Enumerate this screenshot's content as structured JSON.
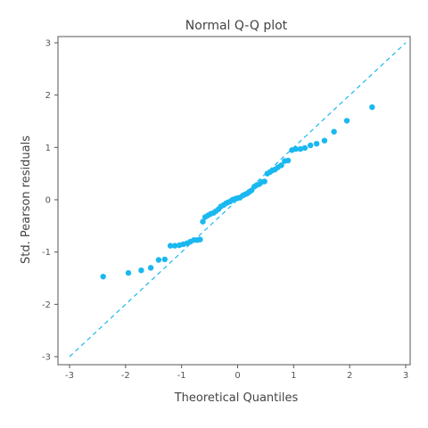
{
  "chart_data": {
    "type": "scatter",
    "title": "Normal Q-Q plot",
    "xlabel": "Theoretical Quantiles",
    "ylabel": "Std. Pearson residuals",
    "xlim": [
      -3,
      3
    ],
    "ylim": [
      -3,
      3
    ],
    "xticks": [
      "-3",
      "-2",
      "-1",
      "0",
      "1",
      "2",
      "3"
    ],
    "yticks": [
      "3",
      "2",
      "1",
      "0",
      "-1",
      "-2",
      "-3"
    ],
    "grid": false,
    "reference_line": {
      "from": [
        -3,
        -3
      ],
      "to": [
        3,
        3
      ],
      "style": "dashed"
    },
    "point_color": "#1ab8f0",
    "line_color": "#1ab8f0",
    "points": [
      [
        -2.4,
        -1.47
      ],
      [
        -1.95,
        -1.4
      ],
      [
        -1.72,
        -1.35
      ],
      [
        -1.55,
        -1.3
      ],
      [
        -1.41,
        -1.15
      ],
      [
        -1.3,
        -1.14
      ],
      [
        -1.2,
        -0.88
      ],
      [
        -1.12,
        -0.88
      ],
      [
        -1.04,
        -0.87
      ],
      [
        -0.97,
        -0.85
      ],
      [
        -0.9,
        -0.83
      ],
      [
        -0.84,
        -0.8
      ],
      [
        -0.78,
        -0.77
      ],
      [
        -0.72,
        -0.77
      ],
      [
        -0.67,
        -0.76
      ],
      [
        -0.62,
        -0.42
      ],
      [
        -0.58,
        -0.33
      ],
      [
        -0.53,
        -0.3
      ],
      [
        -0.48,
        -0.27
      ],
      [
        -0.43,
        -0.25
      ],
      [
        -0.39,
        -0.22
      ],
      [
        -0.34,
        -0.18
      ],
      [
        -0.3,
        -0.13
      ],
      [
        -0.25,
        -0.1
      ],
      [
        -0.21,
        -0.07
      ],
      [
        -0.17,
        -0.05
      ],
      [
        -0.13,
        -0.03
      ],
      [
        -0.09,
        0.0
      ],
      [
        -0.04,
        0.02
      ],
      [
        0.0,
        0.03
      ],
      [
        0.04,
        0.04
      ],
      [
        0.09,
        0.08
      ],
      [
        0.13,
        0.1
      ],
      [
        0.17,
        0.12
      ],
      [
        0.21,
        0.15
      ],
      [
        0.25,
        0.18
      ],
      [
        0.3,
        0.25
      ],
      [
        0.34,
        0.28
      ],
      [
        0.39,
        0.3
      ],
      [
        0.43,
        0.34
      ],
      [
        0.48,
        0.35
      ],
      [
        0.53,
        0.5
      ],
      [
        0.58,
        0.53
      ],
      [
        0.62,
        0.56
      ],
      [
        0.67,
        0.58
      ],
      [
        0.72,
        0.62
      ],
      [
        0.78,
        0.66
      ],
      [
        0.84,
        0.74
      ],
      [
        0.9,
        0.75
      ],
      [
        0.97,
        0.95
      ],
      [
        1.04,
        0.97
      ],
      [
        1.12,
        0.97
      ],
      [
        1.2,
        0.99
      ],
      [
        1.3,
        1.04
      ],
      [
        1.41,
        1.07
      ],
      [
        1.55,
        1.13
      ],
      [
        1.72,
        1.3
      ],
      [
        1.95,
        1.51
      ],
      [
        2.4,
        1.77
      ]
    ]
  }
}
